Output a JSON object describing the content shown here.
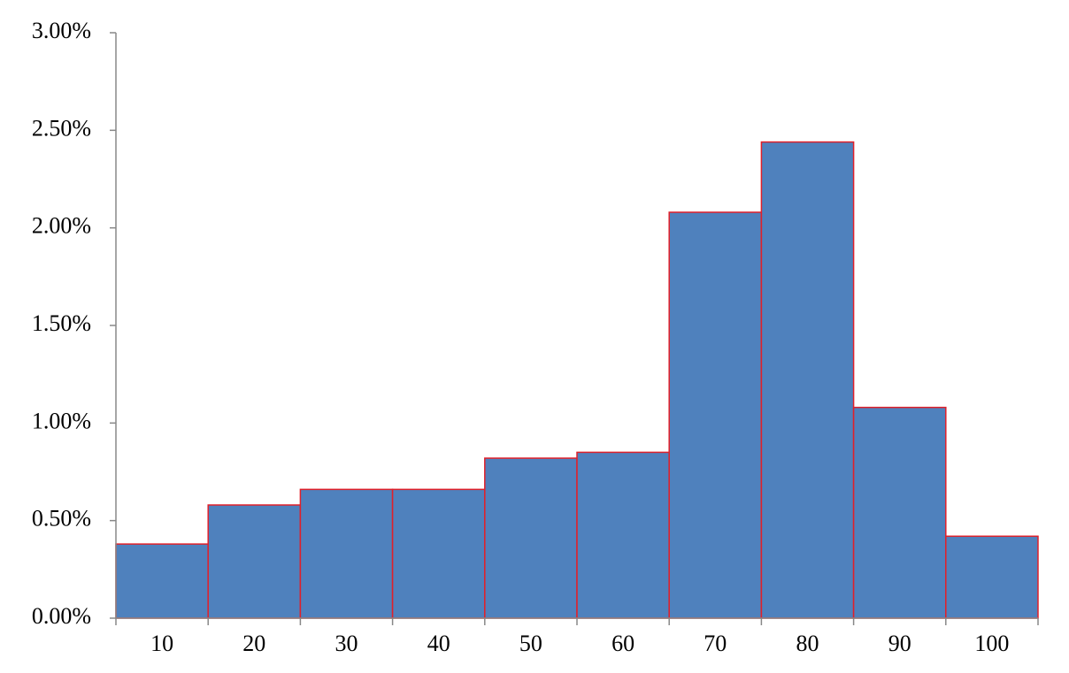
{
  "chart_data": {
    "type": "bar",
    "categories": [
      "10",
      "20",
      "30",
      "40",
      "50",
      "60",
      "70",
      "80",
      "90",
      "100"
    ],
    "values": [
      0.38,
      0.58,
      0.66,
      0.66,
      0.82,
      0.85,
      2.08,
      2.44,
      1.08,
      0.42
    ],
    "color": "#4f81bd",
    "edge_color": "#e0202a",
    "ylim": [
      0,
      3
    ],
    "yticks": [
      {
        "value": 0,
        "label": "0.00%"
      },
      {
        "value": 0.5,
        "label": "0.50%"
      },
      {
        "value": 1,
        "label": "1.00%"
      },
      {
        "value": 1.5,
        "label": "1.50%"
      },
      {
        "value": 2,
        "label": "2.00%"
      },
      {
        "value": 2.5,
        "label": "2.50%"
      },
      {
        "value": 3,
        "label": "3.00%"
      }
    ],
    "grid": false
  }
}
